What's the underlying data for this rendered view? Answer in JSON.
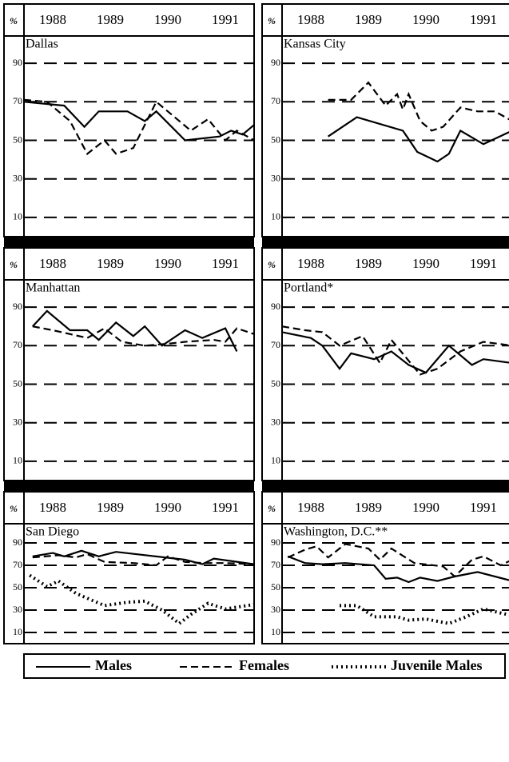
{
  "chart_data": [
    {
      "type": "line",
      "title": "Dallas",
      "ylabel": "%",
      "xlim": [
        1987.5,
        1991.5
      ],
      "xticks": [
        1988,
        1989,
        1990,
        1991
      ],
      "ylim": [
        0,
        100
      ],
      "yticks": [
        10,
        30,
        50,
        70,
        90
      ],
      "grid": true,
      "series": [
        {
          "name": "Males",
          "color": "#000000",
          "style": "solid",
          "x": [
            1987.5,
            1988.2,
            1988.55,
            1988.8,
            1989.3,
            1989.6,
            1989.8,
            1990.3,
            1990.9,
            1991.1,
            1991.3,
            1991.5
          ],
          "values": [
            70,
            68,
            57,
            65,
            65,
            60,
            65,
            50,
            52,
            55,
            53,
            58
          ]
        },
        {
          "name": "Females",
          "color": "#000000",
          "style": "dashed",
          "x": [
            1987.5,
            1987.9,
            1988.3,
            1988.6,
            1988.9,
            1989.1,
            1989.4,
            1989.8,
            1990.4,
            1990.7,
            1991.0,
            1991.2,
            1991.5
          ],
          "values": [
            71,
            70,
            60,
            43,
            50,
            43,
            46,
            70,
            55,
            61,
            50,
            55,
            50
          ]
        }
      ]
    },
    {
      "type": "line",
      "title": "Kansas City",
      "ylabel": "%",
      "xlim": [
        1987.5,
        1991.5
      ],
      "xticks": [
        1988,
        1989,
        1990,
        1991
      ],
      "ylim": [
        0,
        100
      ],
      "yticks": [
        10,
        30,
        50,
        70,
        90
      ],
      "grid": true,
      "series": [
        {
          "name": "Males",
          "color": "#000000",
          "style": "solid",
          "x": [
            1988.3,
            1988.8,
            1989.6,
            1989.85,
            1990.2,
            1990.4,
            1990.6,
            1991.0,
            1991.5
          ],
          "values": [
            52,
            62,
            55,
            44,
            39,
            43,
            55,
            48,
            55
          ]
        },
        {
          "name": "Females",
          "color": "#000000",
          "style": "dashed",
          "x": [
            1988.3,
            1988.7,
            1989.0,
            1989.3,
            1989.5,
            1989.6,
            1989.7,
            1989.9,
            1990.1,
            1990.3,
            1990.6,
            1990.9,
            1991.2,
            1991.5
          ],
          "values": [
            71,
            71,
            80,
            68,
            74,
            66,
            74,
            60,
            55,
            57,
            67,
            65,
            65,
            60
          ]
        }
      ]
    },
    {
      "type": "line",
      "title": "Manhattan",
      "ylabel": "%",
      "xlim": [
        1987.5,
        1991.5
      ],
      "xticks": [
        1988,
        1989,
        1990,
        1991
      ],
      "ylim": [
        0,
        100
      ],
      "yticks": [
        10,
        30,
        50,
        70,
        90
      ],
      "grid": true,
      "series": [
        {
          "name": "Males",
          "color": "#000000",
          "style": "solid",
          "x": [
            1987.65,
            1987.9,
            1988.3,
            1988.6,
            1988.8,
            1989.1,
            1989.4,
            1989.6,
            1989.9,
            1990.3,
            1990.6,
            1991.0,
            1991.2
          ],
          "values": [
            80,
            88,
            78,
            78,
            73,
            82,
            75,
            80,
            70,
            78,
            74,
            79,
            67
          ]
        },
        {
          "name": "Females",
          "color": "#000000",
          "style": "dashed",
          "x": [
            1987.65,
            1988.0,
            1988.3,
            1988.6,
            1988.9,
            1989.2,
            1989.6,
            1990.0,
            1990.3,
            1990.8,
            1991.0,
            1991.2,
            1991.5
          ],
          "values": [
            80,
            78,
            76,
            74,
            79,
            72,
            70,
            71,
            72,
            73,
            72,
            79,
            76
          ]
        }
      ]
    },
    {
      "type": "line",
      "title": "Portland*",
      "ylabel": "%",
      "xlim": [
        1987.5,
        1991.5
      ],
      "xticks": [
        1988,
        1989,
        1990,
        1991
      ],
      "ylim": [
        0,
        100
      ],
      "yticks": [
        10,
        30,
        50,
        70,
        90
      ],
      "grid": true,
      "series": [
        {
          "name": "Males",
          "color": "#000000",
          "style": "solid",
          "x": [
            1987.5,
            1988.0,
            1988.2,
            1988.5,
            1988.7,
            1989.1,
            1989.4,
            1989.7,
            1990.0,
            1990.4,
            1990.8,
            1991.0,
            1991.5
          ],
          "values": [
            77,
            74,
            70,
            58,
            66,
            63,
            67,
            60,
            56,
            70,
            60,
            63,
            61
          ]
        },
        {
          "name": "Females",
          "color": "#000000",
          "style": "dashed",
          "x": [
            1987.5,
            1987.9,
            1988.2,
            1988.5,
            1988.9,
            1989.2,
            1989.4,
            1989.9,
            1990.2,
            1990.6,
            1991.0,
            1991.5
          ],
          "values": [
            80,
            78,
            77,
            70,
            75,
            61,
            73,
            55,
            58,
            67,
            72,
            70
          ]
        }
      ]
    },
    {
      "type": "line",
      "title": "San Diego",
      "ylabel": "%",
      "xlim": [
        1987.5,
        1991.5
      ],
      "xticks": [
        1988,
        1989,
        1990,
        1991
      ],
      "ylim": [
        0,
        100
      ],
      "yticks": [
        10,
        30,
        50,
        70,
        90
      ],
      "grid": true,
      "series": [
        {
          "name": "Males",
          "color": "#000000",
          "style": "solid",
          "x": [
            1987.65,
            1988.0,
            1988.2,
            1988.5,
            1988.8,
            1989.1,
            1990.3,
            1990.6,
            1990.8,
            1991.5
          ],
          "values": [
            78,
            81,
            78,
            83,
            78,
            82,
            75,
            71,
            76,
            71
          ]
        },
        {
          "name": "Females",
          "color": "#000000",
          "style": "dashed",
          "x": [
            1987.65,
            1988.1,
            1988.4,
            1988.6,
            1988.9,
            1989.4,
            1989.8,
            1990.0,
            1990.3,
            1990.6,
            1991.0,
            1991.5
          ],
          "values": [
            77,
            79,
            77,
            80,
            73,
            72,
            70,
            78,
            73,
            72,
            72,
            71
          ]
        },
        {
          "name": "Juvenile Males",
          "color": "#000000",
          "style": "dotted",
          "x": [
            1987.6,
            1987.9,
            1988.1,
            1988.4,
            1988.9,
            1989.3,
            1989.6,
            1989.9,
            1990.2,
            1990.4,
            1990.7,
            1991.0,
            1991.5
          ],
          "values": [
            61,
            51,
            56,
            45,
            34,
            37,
            38,
            30,
            18,
            26,
            36,
            31,
            35
          ]
        }
      ]
    },
    {
      "type": "line",
      "title": "Washington, D.C.**",
      "ylabel": "%",
      "xlim": [
        1987.5,
        1991.5
      ],
      "xticks": [
        1988,
        1989,
        1990,
        1991
      ],
      "ylim": [
        0,
        100
      ],
      "yticks": [
        10,
        30,
        50,
        70,
        90
      ],
      "grid": true,
      "series": [
        {
          "name": "Males",
          "color": "#000000",
          "style": "solid",
          "x": [
            1987.6,
            1987.9,
            1988.2,
            1988.6,
            1989.1,
            1989.3,
            1989.5,
            1989.7,
            1989.9,
            1990.2,
            1990.5,
            1990.9,
            1991.5
          ],
          "values": [
            78,
            72,
            71,
            72,
            70,
            58,
            59,
            55,
            59,
            56,
            60,
            64,
            56
          ]
        },
        {
          "name": "Females",
          "color": "#000000",
          "style": "dashed",
          "x": [
            1987.6,
            1987.9,
            1988.1,
            1988.3,
            1988.6,
            1989.0,
            1989.2,
            1989.4,
            1989.8,
            1990.3,
            1990.5,
            1990.8,
            1991.0,
            1991.3,
            1991.5
          ],
          "values": [
            77,
            84,
            87,
            77,
            89,
            85,
            75,
            85,
            72,
            69,
            60,
            75,
            78,
            70,
            75
          ]
        },
        {
          "name": "Juvenile Males",
          "color": "#000000",
          "style": "dotted",
          "x": [
            1988.5,
            1988.8,
            1989.1,
            1989.5,
            1989.7,
            1990.0,
            1990.4,
            1990.7,
            1991.0,
            1991.5
          ],
          "values": [
            34,
            34,
            24,
            24,
            21,
            22,
            18,
            24,
            31,
            25
          ]
        }
      ]
    }
  ]
}
